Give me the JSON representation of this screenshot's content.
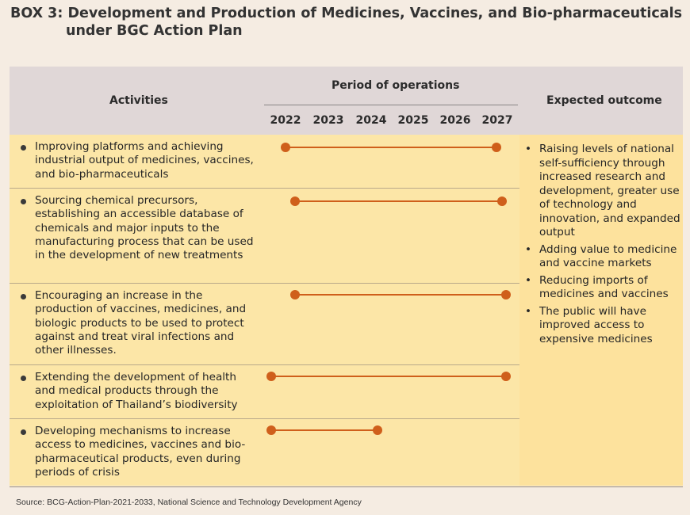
{
  "title": {
    "line1": "BOX 3: Development and Production of Medicines, Vaccines, and Bio-pharmaceuticals",
    "line2": "under BGC Action Plan"
  },
  "header": {
    "activities": "Activities",
    "period": "Period of operations",
    "outcome": "Expected outcome",
    "years": [
      "2022",
      "2023",
      "2024",
      "2025",
      "2026",
      "2027"
    ]
  },
  "activities": [
    {
      "text": "Improving platforms and achieving industrial output of medicines, vaccines, and bio-pharmaceuticals",
      "start": "2022",
      "end": "2027"
    },
    {
      "text": "Sourcing chemical precursors, establishing an accessible database of chemicals and major inputs to the manufacturing process that can be used in the development of new treatments",
      "start": "2022",
      "end": "2027"
    },
    {
      "text": "Encouraging an increase in the production of vaccines, medicines, and biologic products to be used to protect against and treat viral infections and other illnesses.",
      "start": "2022",
      "end": "2027"
    },
    {
      "text": "Extending the development of health and medical products through the exploitation of Thailand’s biodiversity",
      "start": "2022",
      "end": "2027"
    },
    {
      "text": "Developing mechanisms to increase access to medicines, vaccines and bio-pharmaceutical products, even during periods of crisis",
      "start": "2022",
      "end": "2024"
    }
  ],
  "outcomes": [
    "Raising levels of national self-sufficiency through increased research and development, greater use of technology and innovation, and expanded output",
    "Adding value to medicine and vaccine markets",
    "Reducing imports of medicines and vaccines",
    "The public will have improved access to expensive medicines"
  ],
  "bullet": "•",
  "colors": {
    "timeline": "#cf5f1b",
    "header_bg": "#e0d7d7",
    "body_bg": "#fce6a7"
  },
  "source": "Source: BCG-Action-Plan-2021-2033, National Science and Technology Development Agency"
}
